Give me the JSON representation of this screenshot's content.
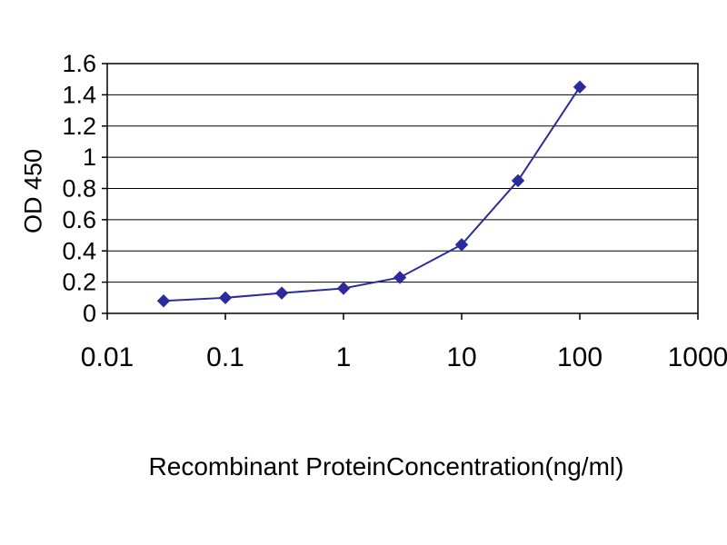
{
  "chart_data": {
    "type": "line",
    "title": "",
    "xlabel": "Recombinant ProteinConcentration(ng/ml)",
    "ylabel": "OD 450",
    "x_scale": "log",
    "xlim": [
      0.01,
      1000
    ],
    "ylim": [
      0,
      1.6
    ],
    "x_ticks": [
      "0.01",
      "0.1",
      "1",
      "10",
      "100",
      "1000"
    ],
    "x_tick_values": [
      0.01,
      0.1,
      1,
      10,
      100,
      1000
    ],
    "y_ticks": [
      "0",
      "0.2",
      "0.4",
      "0.6",
      "0.8",
      "1",
      "1.2",
      "1.4",
      "1.6"
    ],
    "y_tick_values": [
      0,
      0.2,
      0.4,
      0.6,
      0.8,
      1,
      1.2,
      1.4,
      1.6
    ],
    "grid": "horizontal",
    "legend": "none",
    "series": [
      {
        "name": "OD 450",
        "x": [
          0.03,
          0.1,
          0.3,
          1,
          3,
          10,
          30,
          100
        ],
        "y": [
          0.08,
          0.1,
          0.13,
          0.16,
          0.23,
          0.44,
          0.85,
          1.45
        ],
        "marker": "diamond",
        "color": "#2b2b9e"
      }
    ],
    "colors": {
      "line": "#2b2b9e",
      "marker": "#2b2b9e",
      "axis": "#000000",
      "grid": "#000000",
      "background": "#ffffff",
      "text": "#000000"
    }
  }
}
